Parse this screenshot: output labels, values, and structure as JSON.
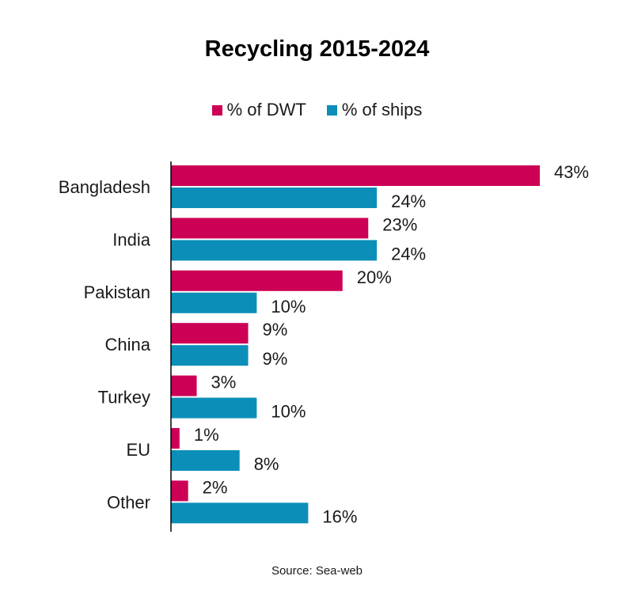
{
  "chart_data": {
    "type": "bar",
    "orientation": "horizontal",
    "title": "Recycling 2015-2024",
    "categories": [
      "Bangladesh",
      "India",
      "Pakistan",
      "China",
      "Turkey",
      "EU",
      "Other"
    ],
    "series": [
      {
        "name": "% of DWT",
        "color": "#cc0055",
        "values": [
          43,
          23,
          20,
          9,
          3,
          1,
          2
        ],
        "labels": [
          "43%",
          "23%",
          "20%",
          "9%",
          "3%",
          "1%",
          "2%"
        ]
      },
      {
        "name": "% of ships",
        "color": "#0b8fb8",
        "values": [
          24,
          24,
          10,
          9,
          10,
          8,
          16
        ],
        "labels": [
          "24%",
          "24%",
          "10%",
          "9%",
          "10%",
          "8%",
          "16%"
        ]
      }
    ],
    "legend": "top-center",
    "grid": false,
    "xlim": [
      0,
      45
    ]
  },
  "source": "Source: Sea-web"
}
